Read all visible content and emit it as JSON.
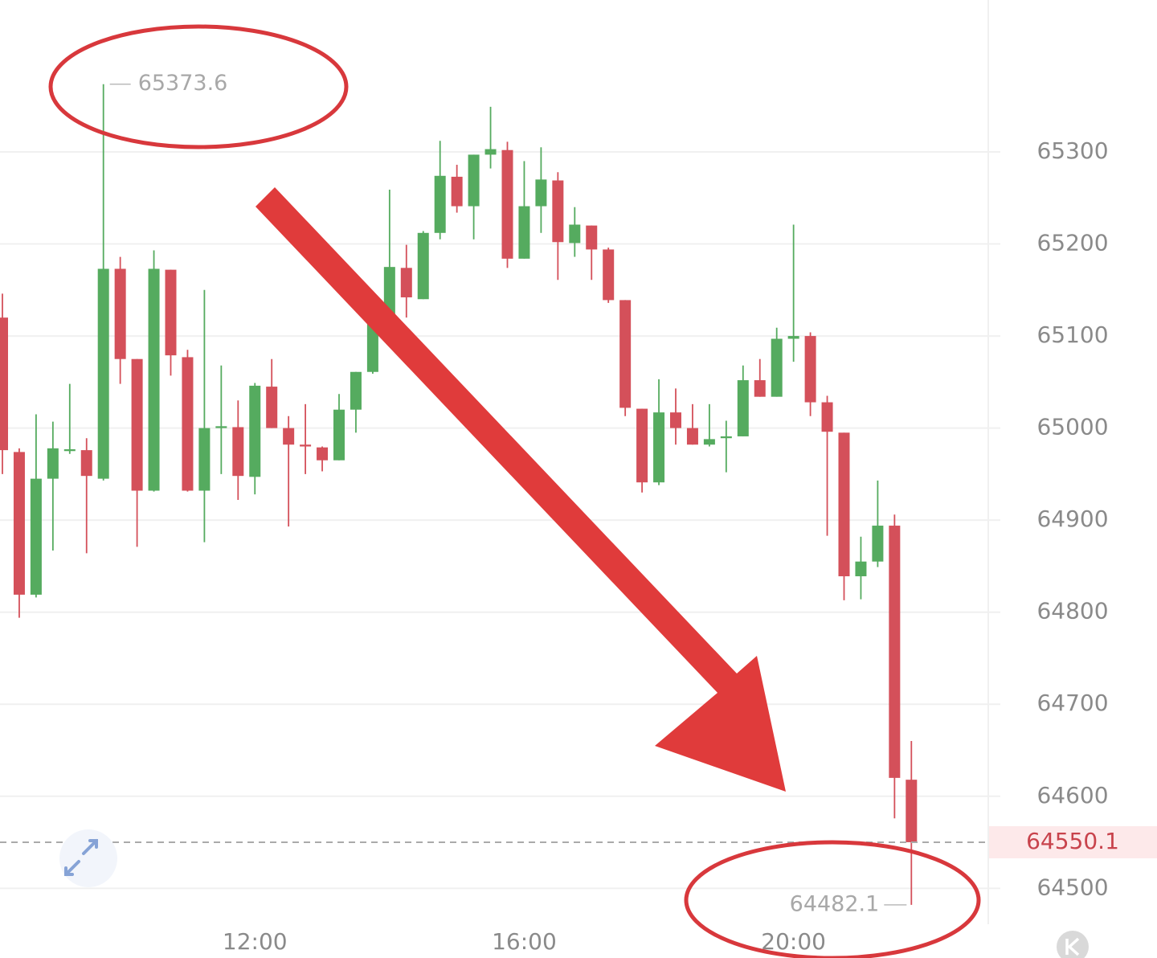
{
  "chart_data": {
    "type": "candlestick",
    "categories": [
      null,
      null,
      null,
      null,
      null,
      null,
      null,
      null,
      null,
      null,
      null,
      null,
      null,
      null,
      null,
      "12:00",
      null,
      null,
      null,
      null,
      null,
      null,
      null,
      null,
      null,
      null,
      null,
      null,
      null,
      null,
      null,
      "16:00",
      null,
      null,
      null,
      null,
      null,
      null,
      null,
      null,
      null,
      null,
      null,
      null,
      null,
      null,
      null,
      "20:00",
      null,
      null,
      null,
      null,
      null,
      null,
      null
    ],
    "open": [
      65120,
      64974,
      64819,
      64945,
      64975,
      64976,
      64945,
      65173,
      65075,
      64932,
      65172,
      65077,
      64932,
      65000,
      65001,
      64947,
      65045,
      65000,
      64982,
      64979,
      64965,
      65020,
      65061,
      65117,
      65174,
      65140,
      65212,
      65273,
      65241,
      65297,
      65302,
      65184,
      65241,
      65269,
      65201,
      65220,
      65194,
      65139,
      65021,
      64941,
      65017,
      65000,
      64982,
      64989,
      64991,
      65052,
      65034,
      65097,
      65100,
      65028,
      64995,
      64839,
      64855,
      64894,
      64618
    ],
    "high": [
      65146,
      64978,
      65015,
      65007,
      65048,
      64989,
      65373.6,
      65186,
      65075,
      65193,
      65172,
      65085,
      65150,
      65068,
      65030,
      65049,
      65075,
      65013,
      65026,
      64980,
      65037,
      65061,
      65142,
      65259,
      65199,
      65214,
      65312,
      65286,
      65297,
      65349,
      65311,
      65290,
      65305,
      65278,
      65240,
      65220,
      65196,
      65139,
      65021,
      65053,
      65043,
      65026,
      65026,
      65008,
      65068,
      65075,
      65109,
      65221,
      65104,
      65035,
      64995,
      64882,
      64943,
      64906,
      64660
    ],
    "low": [
      64950,
      64794,
      64816,
      64867,
      64972,
      64864,
      64943,
      65048,
      64871,
      64931,
      65057,
      64931,
      64876,
      64950,
      64922,
      64928,
      65000,
      64893,
      64950,
      64953,
      64965,
      64995,
      65059,
      65116,
      65120,
      65140,
      65205,
      65234,
      65205,
      65282,
      65174,
      65184,
      65212,
      65161,
      65186,
      65161,
      65136,
      65013,
      64930,
      64938,
      64982,
      64982,
      64980,
      64952,
      64991,
      65034,
      65034,
      65072,
      65013,
      64883,
      64813,
      64814,
      64849,
      64576,
      64482.1
    ],
    "close": [
      64976,
      64819,
      64945,
      64978,
      64977,
      64948,
      65173,
      65075,
      64932,
      65173,
      65079,
      64932,
      65000,
      65002,
      64948,
      65046,
      65000,
      64982,
      64980,
      64965,
      65020,
      65061,
      65116,
      65175,
      65142,
      65212,
      65274,
      65241,
      65297,
      65303,
      65184,
      65241,
      65270,
      65202,
      65221,
      65194,
      65139,
      65022,
      64941,
      65017,
      65000,
      64982,
      64988,
      64991,
      65052,
      65034,
      65097,
      65100,
      65028,
      64996,
      64839,
      64855,
      64894,
      64620,
      64550.1
    ],
    "up_color": "#55ab5f",
    "down_color": "#d4505a",
    "ylim": [
      64461,
      65465
    ],
    "yticks": [
      64500,
      64600,
      64700,
      64800,
      64900,
      65000,
      65100,
      65200,
      65300
    ],
    "grid": true
  }
}
